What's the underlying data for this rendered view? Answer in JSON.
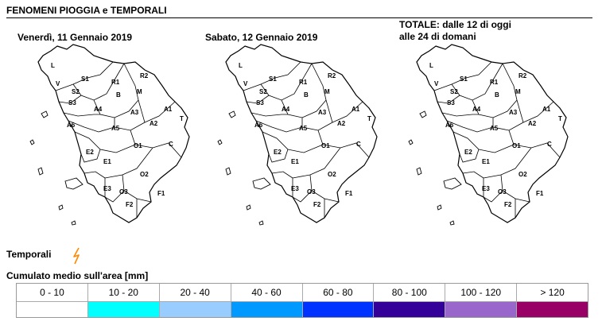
{
  "header": {
    "title": "FENOMENI PIOGGIA e TEMPORALI"
  },
  "maps": [
    {
      "title": "Venerdì, 11 Gennaio 2019"
    },
    {
      "title": "Sabato, 12 Gennaio 2019"
    },
    {
      "title_line1": "TOTALE: dalle 12 di oggi",
      "title_line2": "alle 24 di domani"
    }
  ],
  "zones": [
    "L",
    "S1",
    "V",
    "S2",
    "S3",
    "R1",
    "R2",
    "M",
    "B",
    "A4",
    "A3",
    "A1",
    "A6",
    "A2",
    "T",
    "A5",
    "O1",
    "C",
    "E2",
    "E1",
    "O2",
    "E3",
    "O3",
    "F1",
    "F2"
  ],
  "legend": {
    "temporali_label": "Temporali",
    "rain_title": "Cumulato medio sull'area [mm]",
    "rain_classes": [
      {
        "label": "0 - 10",
        "color": "#ffffff"
      },
      {
        "label": "10 - 20",
        "color": "#00ffff"
      },
      {
        "label": "20 - 40",
        "color": "#99ccff"
      },
      {
        "label": "40 - 60",
        "color": "#0099ff"
      },
      {
        "label": "60 - 80",
        "color": "#0033ff"
      },
      {
        "label": "80 - 100",
        "color": "#330099"
      },
      {
        "label": "100 - 120",
        "color": "#9966cc"
      },
      {
        "label": "> 120",
        "color": "#990066"
      }
    ]
  },
  "colors": {
    "bolt": "#ff8800"
  }
}
